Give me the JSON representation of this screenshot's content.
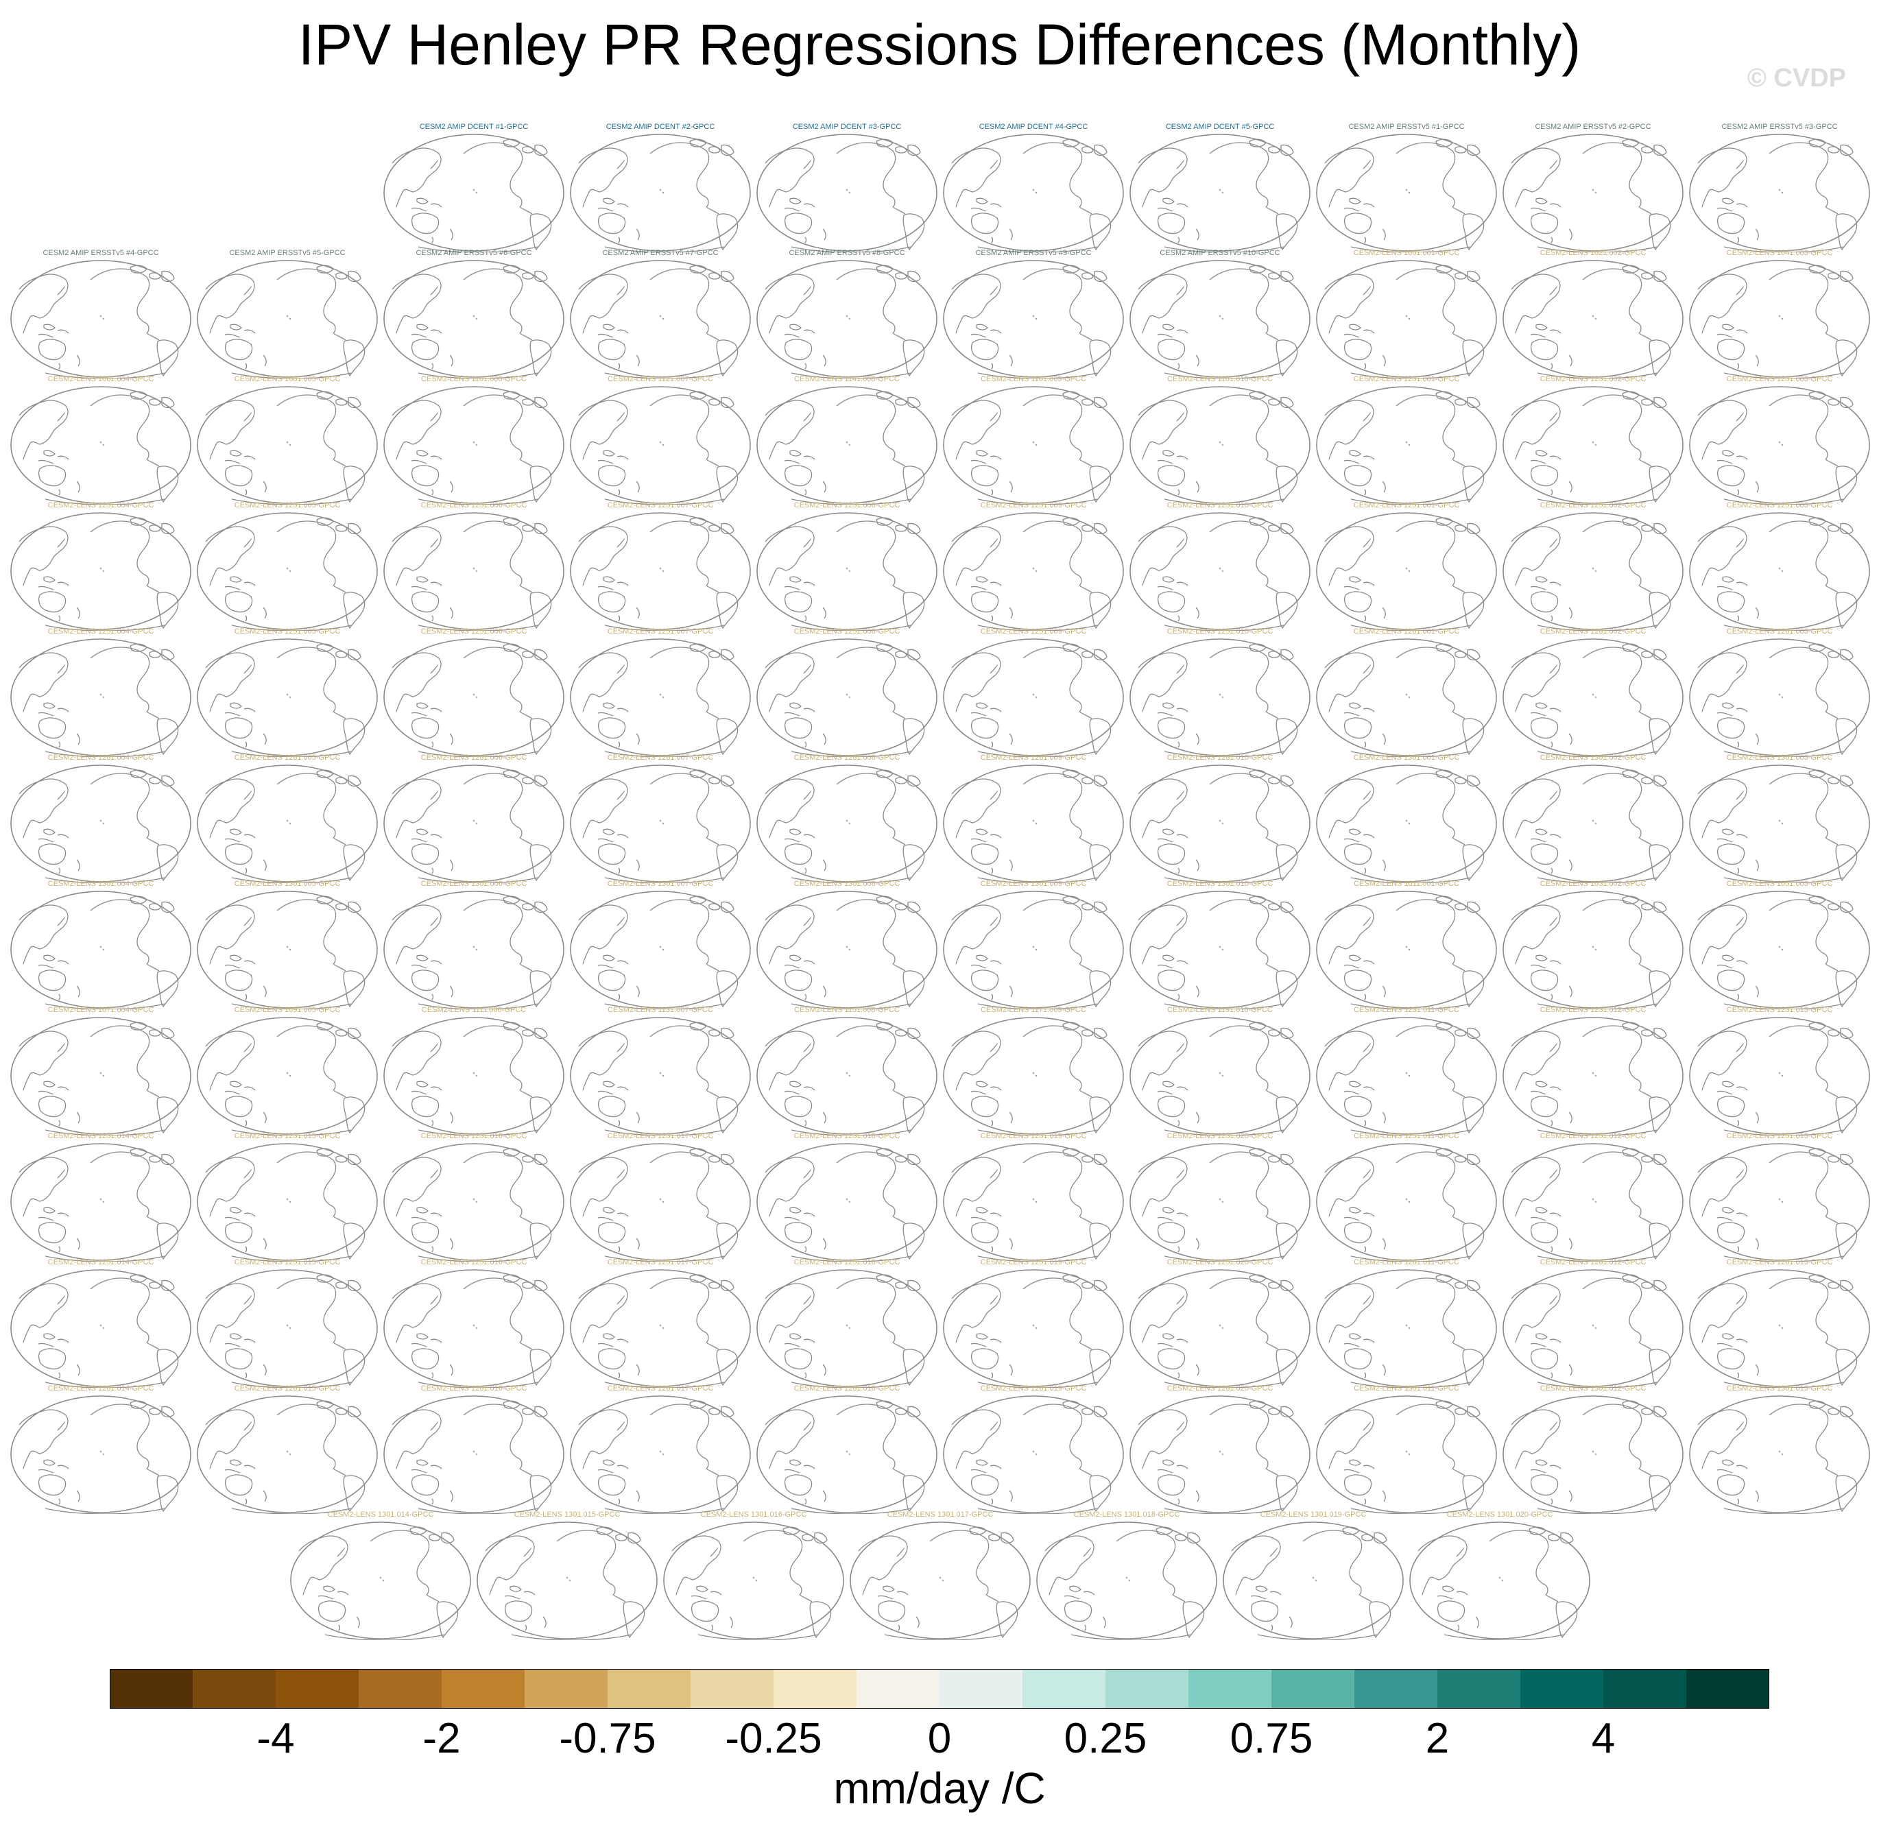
{
  "title": "IPV Henley PR Regressions Differences (Monthly)",
  "copyright": "© CVDP",
  "colorbar": {
    "colors": [
      "#543005",
      "#7a4a0e",
      "#8c510a",
      "#a86b21",
      "#bf812d",
      "#d2a45a",
      "#dfc27d",
      "#ebd8a7",
      "#f6e8c3",
      "#f5f2ec",
      "#e6f1ef",
      "#c7eae5",
      "#a9ddd3",
      "#80cdc1",
      "#5ab4a6",
      "#35978f",
      "#1d7f76",
      "#01665e",
      "#01554c",
      "#003c30"
    ],
    "labels": [
      "-4",
      "-2",
      "-0.75",
      "-0.25",
      "0",
      "0.25",
      "0.75",
      "2",
      "4"
    ],
    "units": "mm/day /C"
  },
  "title_colors": {
    "dcent": "#1f6e92",
    "ersst": "#6a7f72",
    "lens": "#c8b270"
  },
  "rows": [
    {
      "offset": 2,
      "panels": [
        {
          "title": "CESM2 AMIP DCENT #1-GPCC",
          "group": "dcent"
        },
        {
          "title": "CESM2 AMIP DCENT #2-GPCC",
          "group": "dcent"
        },
        {
          "title": "CESM2 AMIP DCENT #3-GPCC",
          "group": "dcent"
        },
        {
          "title": "CESM2 AMIP DCENT #4-GPCC",
          "group": "dcent"
        },
        {
          "title": "CESM2 AMIP DCENT #5-GPCC",
          "group": "dcent"
        },
        {
          "title": "CESM2 AMIP ERSSTv5 #1-GPCC",
          "group": "ersst"
        },
        {
          "title": "CESM2 AMIP ERSSTv5 #2-GPCC",
          "group": "ersst"
        },
        {
          "title": "CESM2 AMIP ERSSTv5 #3-GPCC",
          "group": "ersst"
        }
      ]
    },
    {
      "offset": 0,
      "panels": [
        {
          "title": "CESM2 AMIP ERSSTv5 #4-GPCC",
          "group": "ersst"
        },
        {
          "title": "CESM2 AMIP ERSSTv5 #5-GPCC",
          "group": "ersst"
        },
        {
          "title": "CESM2 AMIP ERSSTv5 #6-GPCC",
          "group": "ersst"
        },
        {
          "title": "CESM2 AMIP ERSSTv5 #7-GPCC",
          "group": "ersst"
        },
        {
          "title": "CESM2 AMIP ERSSTv5 #8-GPCC",
          "group": "ersst"
        },
        {
          "title": "CESM2 AMIP ERSSTv5 #9-GPCC",
          "group": "ersst"
        },
        {
          "title": "CESM2 AMIP ERSSTv5 #10-GPCC",
          "group": "ersst"
        },
        {
          "title": "CESM2-LENS 1001.001-GPCC",
          "group": "lens"
        },
        {
          "title": "CESM2-LENS 1021.002-GPCC",
          "group": "lens"
        },
        {
          "title": "CESM2-LENS 1041.003-GPCC",
          "group": "lens"
        }
      ]
    },
    {
      "offset": 0,
      "panels": [
        {
          "title": "CESM2-LENS 1061.004-GPCC",
          "group": "lens"
        },
        {
          "title": "CESM2-LENS 1081.005-GPCC",
          "group": "lens"
        },
        {
          "title": "CESM2-LENS 1101.006-GPCC",
          "group": "lens"
        },
        {
          "title": "CESM2-LENS 1121.007-GPCC",
          "group": "lens"
        },
        {
          "title": "CESM2-LENS 1141.008-GPCC",
          "group": "lens"
        },
        {
          "title": "CESM2-LENS 1161.009-GPCC",
          "group": "lens"
        },
        {
          "title": "CESM2-LENS 1181.010-GPCC",
          "group": "lens"
        },
        {
          "title": "CESM2-LENS 1231.001-GPCC",
          "group": "lens"
        },
        {
          "title": "CESM2-LENS 1231.002-GPCC",
          "group": "lens"
        },
        {
          "title": "CESM2-LENS 1231.003-GPCC",
          "group": "lens"
        }
      ]
    },
    {
      "offset": 0,
      "panels": [
        {
          "title": "CESM2-LENS 1231.004-GPCC",
          "group": "lens"
        },
        {
          "title": "CESM2-LENS 1231.005-GPCC",
          "group": "lens"
        },
        {
          "title": "CESM2-LENS 1231.006-GPCC",
          "group": "lens"
        },
        {
          "title": "CESM2-LENS 1231.007-GPCC",
          "group": "lens"
        },
        {
          "title": "CESM2-LENS 1231.008-GPCC",
          "group": "lens"
        },
        {
          "title": "CESM2-LENS 1231.009-GPCC",
          "group": "lens"
        },
        {
          "title": "CESM2-LENS 1231.010-GPCC",
          "group": "lens"
        },
        {
          "title": "CESM2-LENS 1251.001-GPCC",
          "group": "lens"
        },
        {
          "title": "CESM2-LENS 1251.002-GPCC",
          "group": "lens"
        },
        {
          "title": "CESM2-LENS 1251.003-GPCC",
          "group": "lens"
        }
      ]
    },
    {
      "offset": 0,
      "panels": [
        {
          "title": "CESM2-LENS 1251.004-GPCC",
          "group": "lens"
        },
        {
          "title": "CESM2-LENS 1251.005-GPCC",
          "group": "lens"
        },
        {
          "title": "CESM2-LENS 1251.006-GPCC",
          "group": "lens"
        },
        {
          "title": "CESM2-LENS 1251.007-GPCC",
          "group": "lens"
        },
        {
          "title": "CESM2-LENS 1251.008-GPCC",
          "group": "lens"
        },
        {
          "title": "CESM2-LENS 1251.009-GPCC",
          "group": "lens"
        },
        {
          "title": "CESM2-LENS 1251.010-GPCC",
          "group": "lens"
        },
        {
          "title": "CESM2-LENS 1281.001-GPCC",
          "group": "lens"
        },
        {
          "title": "CESM2-LENS 1281.002-GPCC",
          "group": "lens"
        },
        {
          "title": "CESM2-LENS 1281.003-GPCC",
          "group": "lens"
        }
      ]
    },
    {
      "offset": 0,
      "panels": [
        {
          "title": "CESM2-LENS 1281.004-GPCC",
          "group": "lens"
        },
        {
          "title": "CESM2-LENS 1281.005-GPCC",
          "group": "lens"
        },
        {
          "title": "CESM2-LENS 1281.006-GPCC",
          "group": "lens"
        },
        {
          "title": "CESM2-LENS 1281.007-GPCC",
          "group": "lens"
        },
        {
          "title": "CESM2-LENS 1281.008-GPCC",
          "group": "lens"
        },
        {
          "title": "CESM2-LENS 1281.009-GPCC",
          "group": "lens"
        },
        {
          "title": "CESM2-LENS 1281.010-GPCC",
          "group": "lens"
        },
        {
          "title": "CESM2-LENS 1301.001-GPCC",
          "group": "lens"
        },
        {
          "title": "CESM2-LENS 1301.002-GPCC",
          "group": "lens"
        },
        {
          "title": "CESM2-LENS 1301.003-GPCC",
          "group": "lens"
        }
      ]
    },
    {
      "offset": 0,
      "panels": [
        {
          "title": "CESM2-LENS 1301.004-GPCC",
          "group": "lens"
        },
        {
          "title": "CESM2-LENS 1301.005-GPCC",
          "group": "lens"
        },
        {
          "title": "CESM2-LENS 1301.006-GPCC",
          "group": "lens"
        },
        {
          "title": "CESM2-LENS 1301.007-GPCC",
          "group": "lens"
        },
        {
          "title": "CESM2-LENS 1301.008-GPCC",
          "group": "lens"
        },
        {
          "title": "CESM2-LENS 1301.009-GPCC",
          "group": "lens"
        },
        {
          "title": "CESM2-LENS 1301.010-GPCC",
          "group": "lens"
        },
        {
          "title": "CESM2-LENS 1011.001-GPCC",
          "group": "lens"
        },
        {
          "title": "CESM2-LENS 1031.002-GPCC",
          "group": "lens"
        },
        {
          "title": "CESM2-LENS 1051.003-GPCC",
          "group": "lens"
        }
      ]
    },
    {
      "offset": 0,
      "panels": [
        {
          "title": "CESM2-LENS 1071.004-GPCC",
          "group": "lens"
        },
        {
          "title": "CESM2-LENS 1091.005-GPCC",
          "group": "lens"
        },
        {
          "title": "CESM2-LENS 1111.006-GPCC",
          "group": "lens"
        },
        {
          "title": "CESM2-LENS 1131.007-GPCC",
          "group": "lens"
        },
        {
          "title": "CESM2-LENS 1151.008-GPCC",
          "group": "lens"
        },
        {
          "title": "CESM2-LENS 1171.009-GPCC",
          "group": "lens"
        },
        {
          "title": "CESM2-LENS 1191.010-GPCC",
          "group": "lens"
        },
        {
          "title": "CESM2-LENS 1231.011-GPCC",
          "group": "lens"
        },
        {
          "title": "CESM2-LENS 1231.012-GPCC",
          "group": "lens"
        },
        {
          "title": "CESM2-LENS 1231.013-GPCC",
          "group": "lens"
        }
      ]
    },
    {
      "offset": 0,
      "panels": [
        {
          "title": "CESM2-LENS 1231.014-GPCC",
          "group": "lens"
        },
        {
          "title": "CESM2-LENS 1231.015-GPCC",
          "group": "lens"
        },
        {
          "title": "CESM2-LENS 1231.016-GPCC",
          "group": "lens"
        },
        {
          "title": "CESM2-LENS 1231.017-GPCC",
          "group": "lens"
        },
        {
          "title": "CESM2-LENS 1231.018-GPCC",
          "group": "lens"
        },
        {
          "title": "CESM2-LENS 1231.019-GPCC",
          "group": "lens"
        },
        {
          "title": "CESM2-LENS 1231.020-GPCC",
          "group": "lens"
        },
        {
          "title": "CESM2-LENS 1251.011-GPCC",
          "group": "lens"
        },
        {
          "title": "CESM2-LENS 1251.012-GPCC",
          "group": "lens"
        },
        {
          "title": "CESM2-LENS 1251.013-GPCC",
          "group": "lens"
        }
      ]
    },
    {
      "offset": 0,
      "panels": [
        {
          "title": "CESM2-LENS 1251.014-GPCC",
          "group": "lens"
        },
        {
          "title": "CESM2-LENS 1251.015-GPCC",
          "group": "lens"
        },
        {
          "title": "CESM2-LENS 1251.016-GPCC",
          "group": "lens"
        },
        {
          "title": "CESM2-LENS 1251.017-GPCC",
          "group": "lens"
        },
        {
          "title": "CESM2-LENS 1251.018-GPCC",
          "group": "lens"
        },
        {
          "title": "CESM2-LENS 1251.019-GPCC",
          "group": "lens"
        },
        {
          "title": "CESM2-LENS 1251.020-GPCC",
          "group": "lens"
        },
        {
          "title": "CESM2-LENS 1281.011-GPCC",
          "group": "lens"
        },
        {
          "title": "CESM2-LENS 1281.012-GPCC",
          "group": "lens"
        },
        {
          "title": "CESM2-LENS 1281.013-GPCC",
          "group": "lens"
        }
      ]
    },
    {
      "offset": 0,
      "panels": [
        {
          "title": "CESM2-LENS 1281.014-GPCC",
          "group": "lens"
        },
        {
          "title": "CESM2-LENS 1281.015-GPCC",
          "group": "lens"
        },
        {
          "title": "CESM2-LENS 1281.016-GPCC",
          "group": "lens"
        },
        {
          "title": "CESM2-LENS 1281.017-GPCC",
          "group": "lens"
        },
        {
          "title": "CESM2-LENS 1281.018-GPCC",
          "group": "lens"
        },
        {
          "title": "CESM2-LENS 1281.019-GPCC",
          "group": "lens"
        },
        {
          "title": "CESM2-LENS 1281.020-GPCC",
          "group": "lens"
        },
        {
          "title": "CESM2-LENS 1301.011-GPCC",
          "group": "lens"
        },
        {
          "title": "CESM2-LENS 1301.012-GPCC",
          "group": "lens"
        },
        {
          "title": "CESM2-LENS 1301.013-GPCC",
          "group": "lens"
        }
      ]
    },
    {
      "offset": 1.5,
      "panels": [
        {
          "title": "CESM2-LENS 1301.014-GPCC",
          "group": "lens"
        },
        {
          "title": "CESM2-LENS 1301.015-GPCC",
          "group": "lens"
        },
        {
          "title": "CESM2-LENS 1301.016-GPCC",
          "group": "lens"
        },
        {
          "title": "CESM2-LENS 1301.017-GPCC",
          "group": "lens"
        },
        {
          "title": "CESM2-LENS 1301.018-GPCC",
          "group": "lens"
        },
        {
          "title": "CESM2-LENS 1301.019-GPCC",
          "group": "lens"
        },
        {
          "title": "CESM2-LENS 1301.020-GPCC",
          "group": "lens"
        }
      ]
    }
  ]
}
